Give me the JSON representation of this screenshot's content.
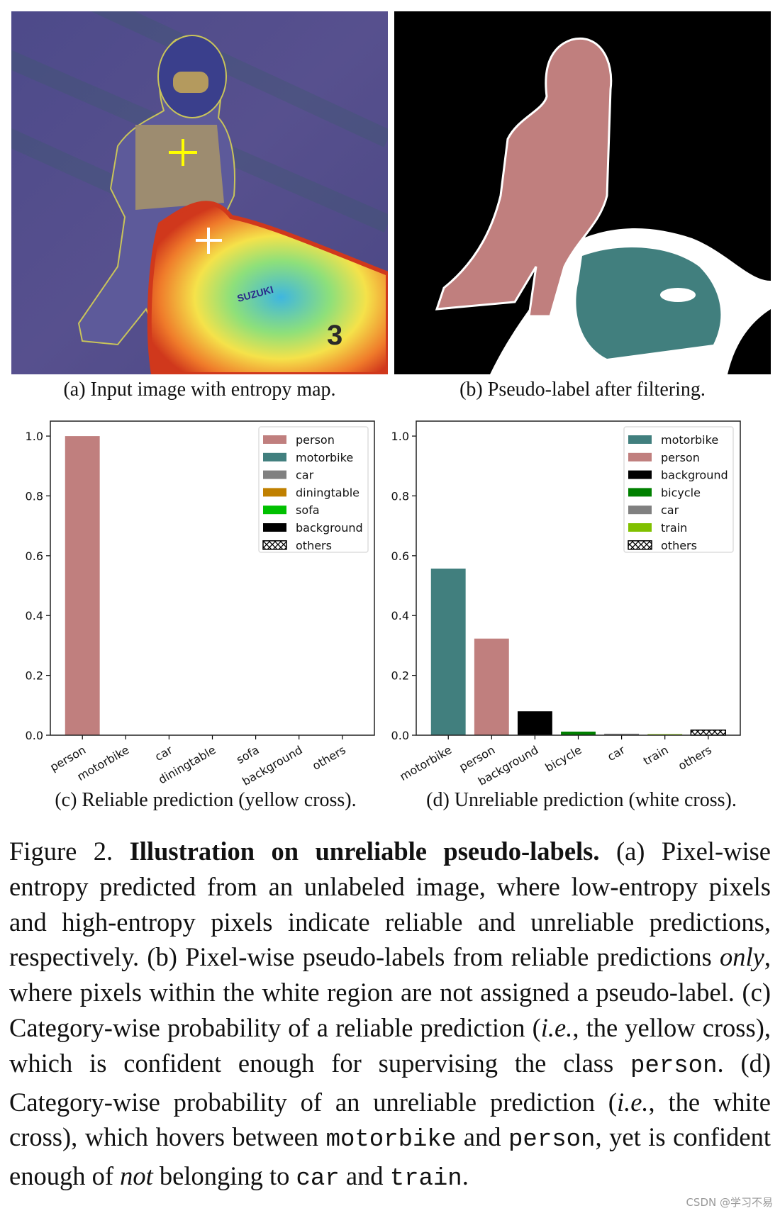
{
  "subfigures": {
    "a_caption": "(a) Input image with entropy map.",
    "b_caption": "(b) Pseudo-label after filtering.",
    "c_caption": "(c) Reliable prediction (yellow cross).",
    "d_caption": "(d) Unreliable prediction (white cross).",
    "a_image_text": [
      "SUZUKI",
      "3"
    ]
  },
  "colors": {
    "person": "#c07f7e",
    "motorbike": "#417f7e",
    "car": "#808080",
    "diningtable": "#c08000",
    "sofa": "#00c000",
    "background": "#000000",
    "bicycle": "#008000",
    "train": "#80c000",
    "others": "#ffffff"
  },
  "chart_data": [
    {
      "type": "bar",
      "id": "c",
      "title": "",
      "xlabel": "",
      "ylabel": "",
      "ylim": [
        0,
        1.05
      ],
      "yticks": [
        "0.0",
        "0.2",
        "0.4",
        "0.6",
        "0.8",
        "1.0"
      ],
      "categories": [
        "person",
        "motorbike",
        "car",
        "diningtable",
        "sofa",
        "background",
        "others"
      ],
      "values": [
        1.0,
        0.0,
        0.0,
        0.0,
        0.0,
        0.0,
        0.0
      ],
      "legend": [
        "person",
        "motorbike",
        "car",
        "diningtable",
        "sofa",
        "background",
        "others"
      ],
      "legend_position": "top-right",
      "grid": false
    },
    {
      "type": "bar",
      "id": "d",
      "title": "",
      "xlabel": "",
      "ylabel": "",
      "ylim": [
        0,
        1.05
      ],
      "yticks": [
        "0.0",
        "0.2",
        "0.4",
        "0.6",
        "0.8",
        "1.0"
      ],
      "categories": [
        "motorbike",
        "person",
        "background",
        "bicycle",
        "car",
        "train",
        "others"
      ],
      "values": [
        0.557,
        0.323,
        0.08,
        0.012,
        0.005,
        0.003,
        0.017
      ],
      "legend": [
        "motorbike",
        "person",
        "background",
        "bicycle",
        "car",
        "train",
        "others"
      ],
      "legend_position": "top-right",
      "grid": false
    }
  ],
  "caption": [
    {
      "t": "Figure 2.  ",
      "s": ""
    },
    {
      "t": "Illustration on unreliable pseudo-labels.",
      "s": "bold"
    },
    {
      "t": "  (a) Pixel-wise entropy predicted from an unlabeled image, where low-entropy pixels and high-entropy pixels indicate reliable and unreliable predictions, respectively. (b) Pixel-wise pseudo-labels from reliable predictions ",
      "s": ""
    },
    {
      "t": "only",
      "s": "it"
    },
    {
      "t": ", where pixels within the white region are not assigned a pseudo-label. (c) Category-wise probability of a reliable prediction (",
      "s": ""
    },
    {
      "t": "i.e.",
      "s": "it"
    },
    {
      "t": ", the yellow cross), which is confident enough for supervising the class ",
      "s": ""
    },
    {
      "t": "person",
      "s": "mono"
    },
    {
      "t": ".  (d) Category-wise probability of an unreliable prediction (",
      "s": ""
    },
    {
      "t": "i.e.",
      "s": "it"
    },
    {
      "t": ", the white cross), which hovers between ",
      "s": ""
    },
    {
      "t": "motorbike",
      "s": "mono"
    },
    {
      "t": " and ",
      "s": ""
    },
    {
      "t": "person",
      "s": "mono"
    },
    {
      "t": ", yet is confident enough of ",
      "s": ""
    },
    {
      "t": "not",
      "s": "it"
    },
    {
      "t": " belonging to ",
      "s": ""
    },
    {
      "t": "car",
      "s": "mono"
    },
    {
      "t": " and ",
      "s": ""
    },
    {
      "t": "train",
      "s": "mono"
    },
    {
      "t": ".",
      "s": ""
    }
  ],
  "watermark": "CSDN @学习不易"
}
